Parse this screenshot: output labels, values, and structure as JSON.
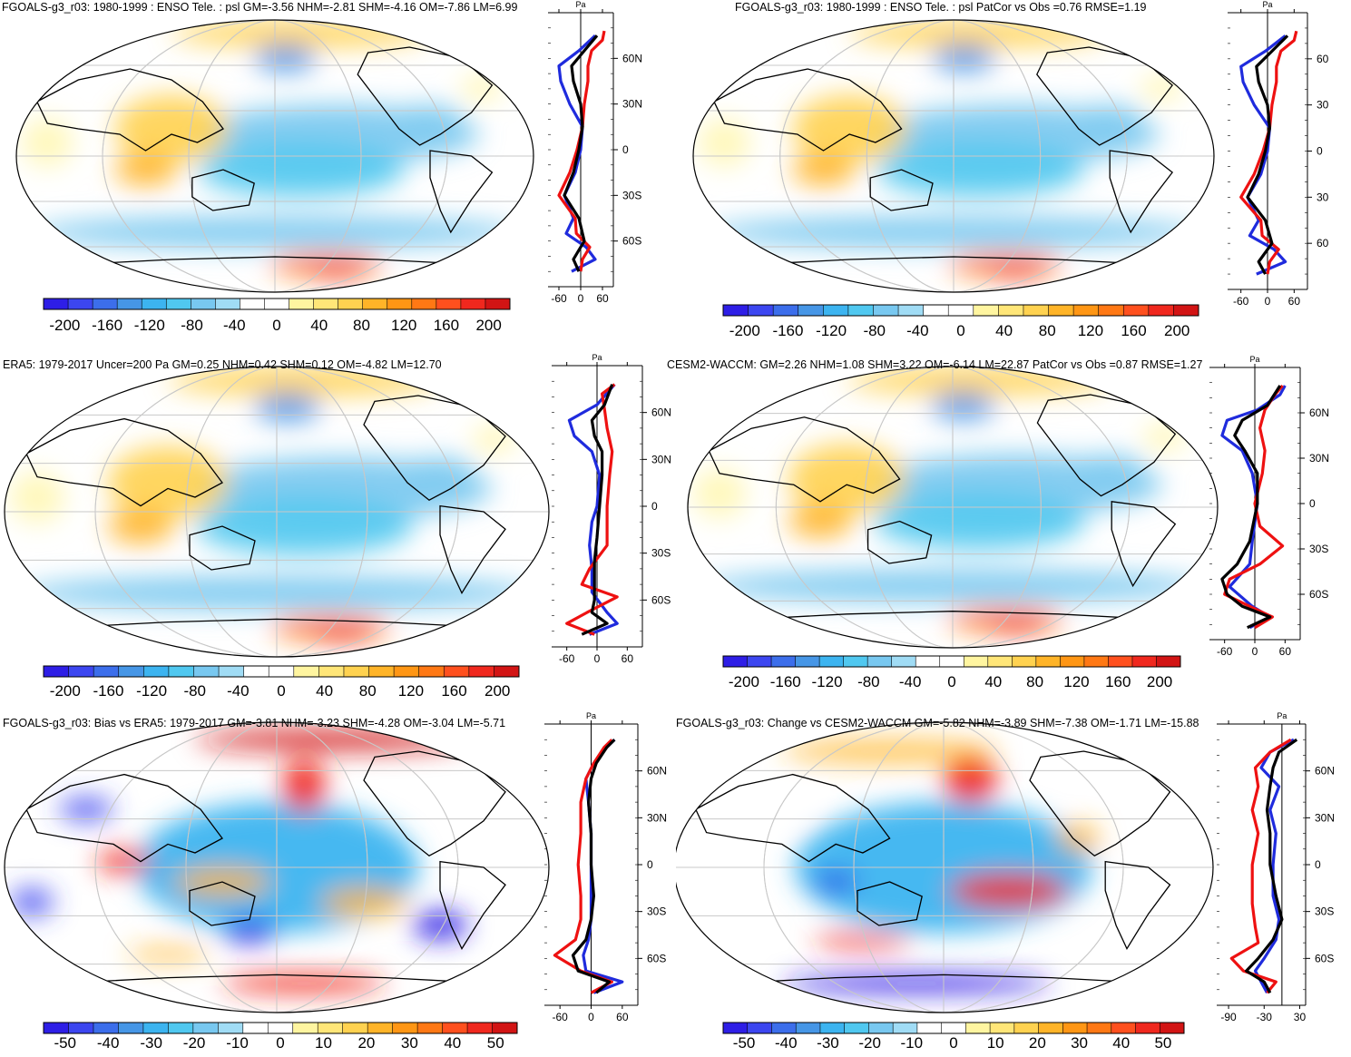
{
  "colors": {
    "palette": [
      "#2e1ee6",
      "#3c46f0",
      "#3c6eeb",
      "#4696e6",
      "#3cb4f0",
      "#50c8f0",
      "#78c8f0",
      "#a0dcf5",
      "#ffffff",
      "#ffffff",
      "#fff5a0",
      "#ffe678",
      "#ffd250",
      "#ffb428",
      "#ff9614",
      "#ff7814",
      "#ff501e",
      "#f0281e",
      "#d21414"
    ],
    "coast": "#000000",
    "grid": "#c8c8c8",
    "line_black": "#000000",
    "line_red": "#ee1111",
    "line_blue": "#1f2bdd"
  },
  "chart_data": [
    {
      "type": "heatmap",
      "title": "FGOALS-g3_r03: 1980-1999 : ENSO Tele. : psl GM=-3.56 NHM=-2.81 SHM=-4.16 OM=-7.86 LM=6.99",
      "colorbar_ticks": [
        "-200",
        "-160",
        "-120",
        "-80",
        "-40",
        "0",
        "40",
        "80",
        "120",
        "160",
        "200"
      ],
      "colorbar_range": [
        -220,
        220
      ],
      "side_xticks": [
        "-60",
        "0",
        "60"
      ],
      "side_xrange": [
        -90,
        90
      ],
      "side_unit": "Pa",
      "lat_ticks": [
        "60N",
        "30N",
        "0",
        "30S",
        "60S"
      ],
      "profile_black": [
        [
          -80,
          -5
        ],
        [
          -72,
          -20
        ],
        [
          -60,
          10
        ],
        [
          -45,
          -5
        ],
        [
          -30,
          -45
        ],
        [
          -15,
          -20
        ],
        [
          0,
          -5
        ],
        [
          15,
          5
        ],
        [
          30,
          0
        ],
        [
          45,
          -20
        ],
        [
          55,
          -25
        ],
        [
          65,
          10
        ],
        [
          75,
          45
        ]
      ],
      "profile_red": [
        [
          -80,
          0
        ],
        [
          -72,
          5
        ],
        [
          -64,
          25
        ],
        [
          -55,
          -12
        ],
        [
          -45,
          -15
        ],
        [
          -30,
          -60
        ],
        [
          -15,
          -30
        ],
        [
          0,
          -10
        ],
        [
          15,
          5
        ],
        [
          30,
          10
        ],
        [
          45,
          20
        ],
        [
          55,
          20
        ],
        [
          65,
          30
        ],
        [
          72,
          60
        ],
        [
          78,
          65
        ]
      ],
      "profile_blue": [
        [
          -80,
          -25
        ],
        [
          -72,
          40
        ],
        [
          -64,
          15
        ],
        [
          -55,
          -40
        ],
        [
          -45,
          -20
        ],
        [
          -30,
          -45
        ],
        [
          -15,
          -15
        ],
        [
          0,
          0
        ],
        [
          15,
          5
        ],
        [
          30,
          -30
        ],
        [
          45,
          -55
        ],
        [
          55,
          -60
        ],
        [
          65,
          -5
        ],
        [
          75,
          40
        ]
      ]
    },
    {
      "type": "heatmap",
      "title": "FGOALS-g3_r03: 1980-1999 : ENSO Tele. : psl PatCor vs Obs =0.76 RMSE=1.19",
      "colorbar_ticks": [
        "-200",
        "-160",
        "-120",
        "-80",
        "-40",
        "0",
        "40",
        "80",
        "120",
        "160",
        "200"
      ],
      "colorbar_range": [
        -220,
        220
      ],
      "side_xticks": [
        "-60",
        "0",
        "60"
      ],
      "side_xrange": [
        -90,
        90
      ],
      "side_unit": "Pa",
      "lat_ticks": [
        "60",
        "30",
        "0",
        "30",
        "60"
      ],
      "profile_black": [
        [
          -80,
          -5
        ],
        [
          -72,
          -20
        ],
        [
          -60,
          10
        ],
        [
          -45,
          -5
        ],
        [
          -30,
          -45
        ],
        [
          -15,
          -20
        ],
        [
          0,
          -5
        ],
        [
          15,
          5
        ],
        [
          30,
          0
        ],
        [
          45,
          -20
        ],
        [
          55,
          -25
        ],
        [
          65,
          10
        ],
        [
          75,
          45
        ]
      ],
      "profile_red": [
        [
          -80,
          0
        ],
        [
          -72,
          5
        ],
        [
          -64,
          25
        ],
        [
          -55,
          -12
        ],
        [
          -45,
          -15
        ],
        [
          -30,
          -60
        ],
        [
          -15,
          -30
        ],
        [
          0,
          -10
        ],
        [
          15,
          5
        ],
        [
          30,
          10
        ],
        [
          45,
          20
        ],
        [
          55,
          20
        ],
        [
          65,
          30
        ],
        [
          72,
          60
        ],
        [
          78,
          65
        ]
      ],
      "profile_blue": [
        [
          -80,
          -25
        ],
        [
          -72,
          40
        ],
        [
          -64,
          15
        ],
        [
          -55,
          -40
        ],
        [
          -45,
          -20
        ],
        [
          -30,
          -45
        ],
        [
          -15,
          -15
        ],
        [
          0,
          0
        ],
        [
          15,
          5
        ],
        [
          30,
          -30
        ],
        [
          45,
          -55
        ],
        [
          55,
          -60
        ],
        [
          65,
          -5
        ],
        [
          75,
          40
        ]
      ]
    },
    {
      "type": "heatmap",
      "title": "ERA5: 1979-2017 Uncer=200 Pa GM=0.25 NHM=0.42 SHM=0.12 OM=-4.82 LM=12.70",
      "colorbar_ticks": [
        "-200",
        "-160",
        "-120",
        "-80",
        "-40",
        "0",
        "40",
        "80",
        "120",
        "160",
        "200"
      ],
      "colorbar_range": [
        -220,
        220
      ],
      "side_xticks": [
        "-60",
        "0",
        "60"
      ],
      "side_xrange": [
        -90,
        90
      ],
      "side_unit": "Pa",
      "lat_ticks": [
        "60N",
        "30N",
        "0",
        "30S",
        "60S"
      ],
      "profile_black": [
        [
          -82,
          -30
        ],
        [
          -75,
          20
        ],
        [
          -68,
          -10
        ],
        [
          -60,
          -5
        ],
        [
          -48,
          -5
        ],
        [
          -35,
          -5
        ],
        [
          -20,
          0
        ],
        [
          0,
          5
        ],
        [
          20,
          10
        ],
        [
          35,
          10
        ],
        [
          45,
          -5
        ],
        [
          55,
          -10
        ],
        [
          65,
          15
        ],
        [
          78,
          30
        ]
      ],
      "profile_red": [
        [
          -82,
          -5
        ],
        [
          -75,
          -60
        ],
        [
          -68,
          -20
        ],
        [
          -58,
          40
        ],
        [
          -50,
          -30
        ],
        [
          -40,
          -15
        ],
        [
          -25,
          20
        ],
        [
          0,
          20
        ],
        [
          20,
          25
        ],
        [
          35,
          30
        ],
        [
          50,
          20
        ],
        [
          62,
          15
        ],
        [
          72,
          10
        ],
        [
          78,
          35
        ]
      ],
      "profile_blue": [
        [
          -82,
          -15
        ],
        [
          -75,
          40
        ],
        [
          -68,
          20
        ],
        [
          -55,
          -10
        ],
        [
          -40,
          -10
        ],
        [
          -25,
          -15
        ],
        [
          -10,
          -10
        ],
        [
          0,
          0
        ],
        [
          20,
          5
        ],
        [
          35,
          -10
        ],
        [
          45,
          -45
        ],
        [
          55,
          -55
        ],
        [
          65,
          0
        ],
        [
          78,
          35
        ]
      ]
    },
    {
      "type": "heatmap",
      "title": "CESM2-WACCM: GM=2.26 NHM=1.08 SHM=3.22 OM=-6.14 LM=22.87 PatCor vs Obs =0.87 RMSE=1.27",
      "colorbar_ticks": [
        "-200",
        "-160",
        "-120",
        "-80",
        "-40",
        "0",
        "40",
        "80",
        "120",
        "160",
        "200"
      ],
      "colorbar_range": [
        -220,
        220
      ],
      "side_xticks": [
        "-60",
        "0",
        "60"
      ],
      "side_xrange": [
        -90,
        90
      ],
      "side_unit": "Pa",
      "lat_ticks": [
        "60N",
        "30N",
        "0",
        "30S",
        "60S"
      ],
      "profile_black": [
        [
          -82,
          -15
        ],
        [
          -75,
          30
        ],
        [
          -68,
          -25
        ],
        [
          -60,
          -55
        ],
        [
          -50,
          -65
        ],
        [
          -40,
          -35
        ],
        [
          -25,
          -10
        ],
        [
          0,
          5
        ],
        [
          20,
          5
        ],
        [
          35,
          -20
        ],
        [
          45,
          -40
        ],
        [
          55,
          -25
        ],
        [
          65,
          25
        ],
        [
          78,
          50
        ]
      ],
      "profile_red": [
        [
          -82,
          0
        ],
        [
          -75,
          35
        ],
        [
          -68,
          -10
        ],
        [
          -60,
          -60
        ],
        [
          -50,
          -50
        ],
        [
          -40,
          10
        ],
        [
          -28,
          55
        ],
        [
          -15,
          10
        ],
        [
          0,
          0
        ],
        [
          20,
          15
        ],
        [
          35,
          20
        ],
        [
          50,
          10
        ],
        [
          62,
          20
        ],
        [
          72,
          40
        ],
        [
          78,
          55
        ]
      ],
      "profile_blue": [
        [
          -82,
          -10
        ],
        [
          -75,
          30
        ],
        [
          -68,
          -5
        ],
        [
          -55,
          -50
        ],
        [
          -40,
          -10
        ],
        [
          -25,
          -5
        ],
        [
          0,
          5
        ],
        [
          20,
          -5
        ],
        [
          35,
          -25
        ],
        [
          45,
          -65
        ],
        [
          55,
          -55
        ],
        [
          62,
          5
        ],
        [
          72,
          50
        ],
        [
          78,
          60
        ]
      ]
    },
    {
      "type": "heatmap",
      "title": "FGOALS-g3_r03: Bias vs ERA5: 1979-2017 GM=-3.81 NHM=-3.23 SHM=-4.28 OM=-3.04 LM=-5.71",
      "colorbar_ticks": [
        "-50",
        "-40",
        "-30",
        "-20",
        "-10",
        "0",
        "10",
        "20",
        "30",
        "40",
        "50"
      ],
      "colorbar_range": [
        -55,
        55
      ],
      "side_xticks": [
        "-60",
        "0",
        "60"
      ],
      "side_xrange": [
        -90,
        90
      ],
      "side_unit": "Pa",
      "lat_ticks": [
        "60N",
        "30N",
        "0",
        "30S",
        "60S"
      ],
      "profile_black": [
        [
          -82,
          10
        ],
        [
          -75,
          35
        ],
        [
          -68,
          -25
        ],
        [
          -58,
          -35
        ],
        [
          -48,
          -10
        ],
        [
          -35,
          0
        ],
        [
          -20,
          5
        ],
        [
          0,
          0
        ],
        [
          20,
          0
        ],
        [
          40,
          -5
        ],
        [
          55,
          0
        ],
        [
          65,
          10
        ],
        [
          75,
          30
        ],
        [
          80,
          45
        ]
      ],
      "profile_red": [
        [
          -82,
          0
        ],
        [
          -75,
          40
        ],
        [
          -68,
          -20
        ],
        [
          -58,
          -70
        ],
        [
          -48,
          -30
        ],
        [
          -35,
          -20
        ],
        [
          -20,
          -20
        ],
        [
          0,
          -25
        ],
        [
          20,
          -20
        ],
        [
          40,
          -20
        ],
        [
          55,
          -10
        ],
        [
          65,
          5
        ],
        [
          75,
          25
        ],
        [
          80,
          40
        ]
      ],
      "profile_blue": [
        [
          -82,
          5
        ],
        [
          -75,
          60
        ],
        [
          -68,
          -10
        ],
        [
          -58,
          -15
        ],
        [
          -48,
          -5
        ],
        [
          -35,
          0
        ],
        [
          -20,
          0
        ],
        [
          0,
          0
        ],
        [
          20,
          0
        ],
        [
          40,
          -5
        ],
        [
          55,
          -10
        ],
        [
          65,
          5
        ],
        [
          75,
          30
        ],
        [
          80,
          45
        ]
      ]
    },
    {
      "type": "heatmap",
      "title": "FGOALS-g3_r03: Change vs CESM2-WACCM GM=-5.82 NHM=-3.89 SHM=-7.38 OM=-1.71 LM=-15.88",
      "colorbar_ticks": [
        "-50",
        "-40",
        "-30",
        "-20",
        "-10",
        "0",
        "10",
        "20",
        "30",
        "40",
        "50"
      ],
      "colorbar_range": [
        -55,
        55
      ],
      "side_xticks": [
        "-90",
        "-30",
        "30"
      ],
      "side_xrange": [
        -110,
        40
      ],
      "side_unit": "Pa",
      "lat_ticks": [
        "60N",
        "30N",
        "0",
        "30S",
        "60S"
      ],
      "profile_black": [
        [
          -82,
          -20
        ],
        [
          -75,
          -30
        ],
        [
          -68,
          -60
        ],
        [
          -60,
          -40
        ],
        [
          -48,
          -15
        ],
        [
          -35,
          0
        ],
        [
          -20,
          -10
        ],
        [
          0,
          -20
        ],
        [
          20,
          -20
        ],
        [
          35,
          -25
        ],
        [
          50,
          -20
        ],
        [
          62,
          -15
        ],
        [
          72,
          -5
        ],
        [
          80,
          25
        ]
      ],
      "profile_red": [
        [
          -82,
          -25
        ],
        [
          -75,
          -10
        ],
        [
          -68,
          -65
        ],
        [
          -60,
          -85
        ],
        [
          -50,
          -40
        ],
        [
          -40,
          -45
        ],
        [
          -25,
          -50
        ],
        [
          0,
          -50
        ],
        [
          20,
          -40
        ],
        [
          35,
          -50
        ],
        [
          50,
          -40
        ],
        [
          62,
          -45
        ],
        [
          72,
          -20
        ],
        [
          80,
          15
        ]
      ],
      "profile_blue": [
        [
          -82,
          -25
        ],
        [
          -75,
          -35
        ],
        [
          -68,
          -45
        ],
        [
          -60,
          -30
        ],
        [
          -48,
          -10
        ],
        [
          -35,
          -5
        ],
        [
          -20,
          -15
        ],
        [
          0,
          -15
        ],
        [
          20,
          -10
        ],
        [
          35,
          -20
        ],
        [
          50,
          -5
        ],
        [
          62,
          -35
        ],
        [
          72,
          -20
        ],
        [
          80,
          20
        ]
      ]
    }
  ]
}
